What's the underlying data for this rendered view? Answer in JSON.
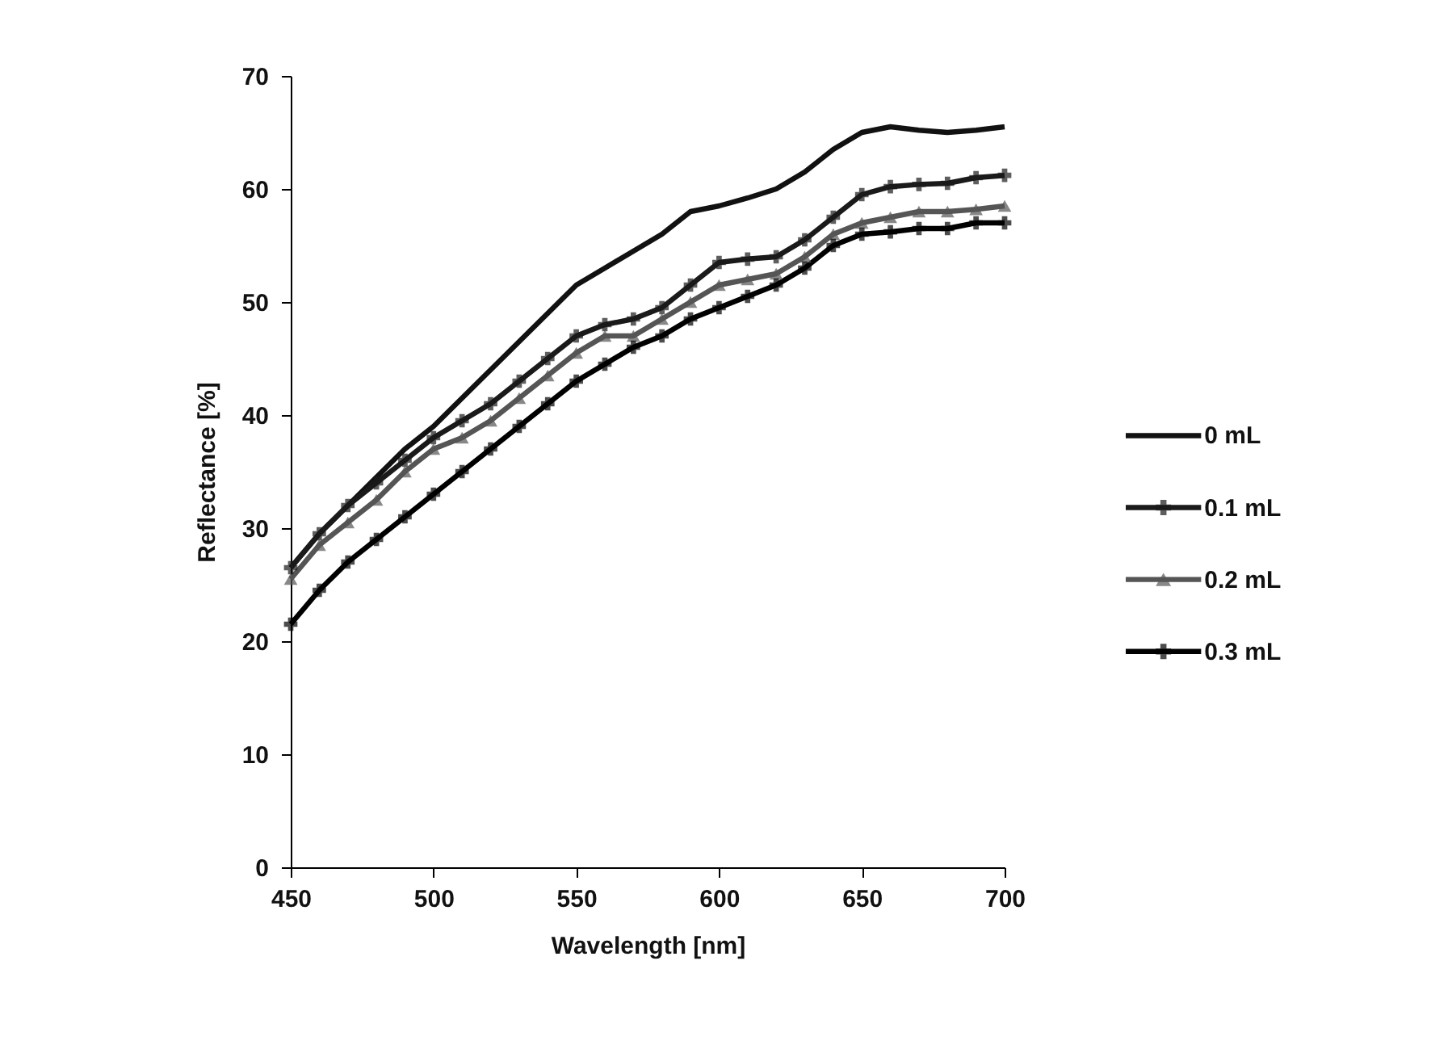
{
  "chart_data": {
    "type": "line",
    "xlabel": "Wavelength  [nm]",
    "ylabel": "Reflectance [%]",
    "x": [
      450,
      460,
      470,
      480,
      490,
      500,
      510,
      520,
      530,
      540,
      550,
      560,
      570,
      580,
      590,
      600,
      610,
      620,
      630,
      640,
      650,
      660,
      670,
      680,
      690,
      700
    ],
    "series": [
      {
        "name": "0 mL",
        "color": "#111111",
        "marker": "none",
        "values": [
          26.5,
          29.5,
          32,
          34.5,
          37,
          39,
          41.5,
          44,
          46.5,
          49,
          51.5,
          53,
          54.5,
          56,
          58,
          58.5,
          59.2,
          60,
          61.5,
          63.5,
          65,
          65.5,
          65.2,
          65,
          65.2,
          65.5
        ]
      },
      {
        "name": "0.1 mL",
        "color": "#1a1a1a",
        "marker": "cross",
        "values": [
          26.5,
          29.5,
          32,
          34,
          36,
          38,
          39.5,
          41,
          43,
          45,
          47,
          48,
          48.5,
          49.5,
          51.5,
          53.5,
          53.8,
          54,
          55.5,
          57.5,
          59.5,
          60.2,
          60.4,
          60.5,
          61,
          61.2
        ]
      },
      {
        "name": "0.2 mL",
        "color": "#555555",
        "marker": "triangle",
        "values": [
          25.5,
          28.5,
          30.5,
          32.5,
          35,
          37,
          38,
          39.5,
          41.5,
          43.5,
          45.5,
          47,
          47,
          48.5,
          50,
          51.5,
          52,
          52.5,
          54,
          56,
          57,
          57.5,
          58,
          58,
          58.2,
          58.5
        ]
      },
      {
        "name": "0.3 mL",
        "color": "#000000",
        "marker": "cross",
        "values": [
          21.5,
          24.5,
          27,
          29,
          31,
          33,
          35,
          37,
          39,
          41,
          43,
          44.5,
          46,
          47,
          48.5,
          49.5,
          50.5,
          51.5,
          53,
          55,
          56,
          56.2,
          56.5,
          56.5,
          57,
          57
        ]
      }
    ],
    "xlim": [
      450,
      700
    ],
    "xticks": [
      450,
      500,
      550,
      600,
      650,
      700
    ],
    "ylim": [
      0,
      70
    ],
    "yticks": [
      0,
      10,
      20,
      30,
      40,
      50,
      60,
      70
    ],
    "grid": false,
    "legend": "right",
    "line_style": "solid"
  }
}
